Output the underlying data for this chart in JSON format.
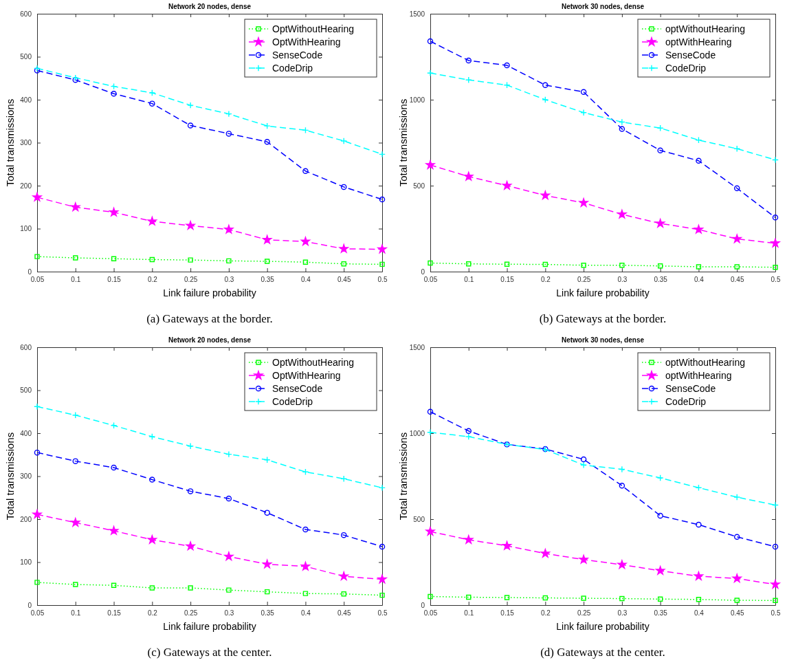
{
  "chart_data": [
    {
      "type": "line",
      "title": "Network 20 nodes, dense",
      "xlabel": "Link failure probability",
      "ylabel": "Total transmissions",
      "annotations": [
        "(a) Gateways at the border."
      ],
      "legend": "top right",
      "grid": false,
      "x": [
        0.05,
        0.1,
        0.15,
        0.2,
        0.25,
        0.3,
        0.35,
        0.4,
        0.45,
        0.5
      ],
      "xlim": [
        0.05,
        0.5
      ],
      "xticks": [
        0.05,
        0.1,
        0.15,
        0.2,
        0.25,
        0.3,
        0.35,
        0.4,
        0.45,
        0.5
      ],
      "ylim": [
        0,
        600
      ],
      "yticks": [
        0,
        100,
        200,
        300,
        400,
        500,
        600
      ],
      "series": [
        {
          "name": "OptWithoutHearing",
          "color": "#00ff00",
          "marker": "square",
          "line_style": "dotted",
          "values": [
            35,
            32,
            30,
            28,
            27,
            25,
            24,
            22,
            18,
            17
          ]
        },
        {
          "name": "OptWithHearing",
          "color": "#ff00ff",
          "marker": "star",
          "line_style": "dashed",
          "values": [
            173,
            150,
            138,
            117,
            107,
            98,
            74,
            70,
            53,
            52
          ]
        },
        {
          "name": "SenseCode",
          "color": "#0000ff",
          "marker": "circle",
          "line_style": "dashed",
          "values": [
            468,
            446,
            414,
            391,
            340,
            321,
            302,
            234,
            197,
            168
          ]
        },
        {
          "name": "CodeDrip",
          "color": "#00ffff",
          "marker": "cross",
          "line_style": "dashed",
          "values": [
            473,
            451,
            431,
            416,
            387,
            367,
            339,
            329,
            304,
            273
          ]
        }
      ]
    },
    {
      "type": "line",
      "title": "Network 30 nodes, dense",
      "xlabel": "Link failure probability",
      "ylabel": "Total transmissions",
      "annotations": [
        "(b) Gateways at the border."
      ],
      "legend": "top right",
      "grid": false,
      "x": [
        0.05,
        0.1,
        0.15,
        0.2,
        0.25,
        0.3,
        0.35,
        0.4,
        0.45,
        0.5
      ],
      "xlim": [
        0.05,
        0.5
      ],
      "xticks": [
        0.05,
        0.1,
        0.15,
        0.2,
        0.25,
        0.3,
        0.35,
        0.4,
        0.45,
        0.5
      ],
      "ylim": [
        0,
        1500
      ],
      "yticks": [
        0,
        500,
        1000,
        1500
      ],
      "series": [
        {
          "name": "optWithoutHearing",
          "color": "#00ff00",
          "marker": "square",
          "line_style": "dotted",
          "values": [
            50,
            45,
            43,
            42,
            37,
            37,
            33,
            28,
            28,
            25
          ]
        },
        {
          "name": "optWithHearing",
          "color": "#ff00ff",
          "marker": "star",
          "line_style": "dashed",
          "values": [
            620,
            553,
            500,
            443,
            400,
            333,
            280,
            245,
            190,
            165
          ]
        },
        {
          "name": "SenseCode",
          "color": "#0000ff",
          "marker": "circle",
          "line_style": "dashed",
          "values": [
            1340,
            1228,
            1200,
            1085,
            1045,
            830,
            705,
            645,
            485,
            315
          ]
        },
        {
          "name": "CodeDrip",
          "color": "#00ffff",
          "marker": "cross",
          "line_style": "dashed",
          "values": [
            1155,
            1115,
            1085,
            1000,
            925,
            870,
            835,
            765,
            715,
            650
          ]
        }
      ]
    },
    {
      "type": "line",
      "title": "Network 20 nodes, dense",
      "xlabel": "Link failure probability",
      "ylabel": "Total transmissions",
      "annotations": [
        "(c) Gateways at the center."
      ],
      "legend": "top right",
      "grid": false,
      "x": [
        0.05,
        0.1,
        0.15,
        0.2,
        0.25,
        0.3,
        0.35,
        0.4,
        0.45,
        0.5
      ],
      "xlim": [
        0.05,
        0.5
      ],
      "xticks": [
        0.05,
        0.1,
        0.15,
        0.2,
        0.25,
        0.3,
        0.35,
        0.4,
        0.45,
        0.5
      ],
      "ylim": [
        0,
        600
      ],
      "yticks": [
        0,
        100,
        200,
        300,
        400,
        500,
        600
      ],
      "series": [
        {
          "name": "OptWithoutHearing",
          "color": "#00ff00",
          "marker": "square",
          "line_style": "dotted",
          "values": [
            53,
            48,
            46,
            40,
            40,
            35,
            31,
            27,
            26,
            23
          ]
        },
        {
          "name": "OptWithHearing",
          "color": "#ff00ff",
          "marker": "star",
          "line_style": "dashed",
          "values": [
            211,
            192,
            173,
            152,
            137,
            113,
            95,
            90,
            67,
            60
          ]
        },
        {
          "name": "SenseCode",
          "color": "#0000ff",
          "marker": "circle",
          "line_style": "dashed",
          "values": [
            355,
            335,
            320,
            292,
            265,
            248,
            215,
            176,
            163,
            136
          ]
        },
        {
          "name": "CodeDrip",
          "color": "#00ffff",
          "marker": "cross",
          "line_style": "dashed",
          "values": [
            462,
            442,
            418,
            392,
            370,
            351,
            338,
            310,
            294,
            273
          ]
        }
      ]
    },
    {
      "type": "line",
      "title": "Network 30 nodes, dense",
      "xlabel": "Link failure probability",
      "ylabel": "Total transmissions",
      "annotations": [
        "(d) Gateways at the center."
      ],
      "legend": "top right",
      "grid": false,
      "x": [
        0.05,
        0.1,
        0.15,
        0.2,
        0.25,
        0.3,
        0.35,
        0.4,
        0.45,
        0.5
      ],
      "xlim": [
        0.05,
        0.5
      ],
      "xticks": [
        0.05,
        0.1,
        0.15,
        0.2,
        0.25,
        0.3,
        0.35,
        0.4,
        0.45,
        0.5
      ],
      "ylim": [
        0,
        1500
      ],
      "yticks": [
        0,
        500,
        1000,
        1500
      ],
      "series": [
        {
          "name": "optWithoutHearing",
          "color": "#00ff00",
          "marker": "square",
          "line_style": "dotted",
          "values": [
            50,
            46,
            44,
            42,
            40,
            38,
            35,
            33,
            28,
            27
          ]
        },
        {
          "name": "optWithHearing",
          "color": "#ff00ff",
          "marker": "star",
          "line_style": "dashed",
          "values": [
            428,
            380,
            345,
            300,
            265,
            235,
            200,
            168,
            155,
            120
          ]
        },
        {
          "name": "SenseCode",
          "color": "#0000ff",
          "marker": "circle",
          "line_style": "dashed",
          "values": [
            1125,
            1013,
            935,
            908,
            848,
            695,
            520,
            468,
            397,
            340
          ]
        },
        {
          "name": "CodeDrip",
          "color": "#00ffff",
          "marker": "cross",
          "line_style": "dashed",
          "values": [
            1005,
            980,
            935,
            905,
            815,
            790,
            740,
            683,
            628,
            582
          ]
        }
      ]
    }
  ]
}
